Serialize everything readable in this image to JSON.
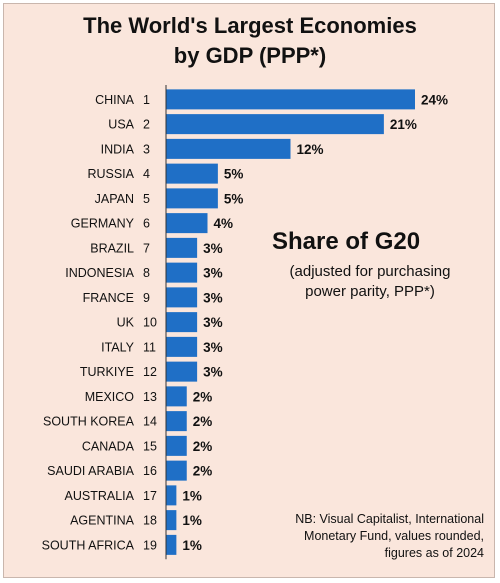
{
  "chart_data": {
    "type": "bar",
    "orientation": "horizontal",
    "title_line1": "The World's Largest Economies",
    "title_line2": "by GDP (PPP*)",
    "categories": [
      "CHINA",
      "USA",
      "INDIA",
      "RUSSIA",
      "JAPAN",
      "GERMANY",
      "BRAZIL",
      "INDONESIA",
      "FRANCE",
      "UK",
      "ITALY",
      "TURKIYE",
      "MEXICO",
      "SOUTH KOREA",
      "CANADA",
      "SAUDI ARABIA",
      "AUSTRALIA",
      "AGENTINA",
      "SOUTH AFRICA"
    ],
    "ranks": [
      "1",
      "2",
      "3",
      "4",
      "5",
      "6",
      "7",
      "8",
      "9",
      "10",
      "11",
      "12",
      "13",
      "14",
      "15",
      "16",
      "17",
      "18",
      "19"
    ],
    "values": [
      24,
      21,
      12,
      5,
      5,
      4,
      3,
      3,
      3,
      3,
      3,
      3,
      2,
      2,
      2,
      2,
      1,
      1,
      1
    ],
    "value_labels": [
      "24%",
      "21%",
      "12%",
      "5%",
      "5%",
      "4%",
      "3%",
      "3%",
      "3%",
      "3%",
      "3%",
      "3%",
      "2%",
      "2%",
      "2%",
      "2%",
      "1%",
      "1%",
      "1%"
    ],
    "xlim": [
      0,
      24
    ],
    "grid": false,
    "bar_color": "#1f6fc6"
  },
  "annotation": {
    "heading": "Share of G20",
    "sub_line1": "(adjusted for purchasing",
    "sub_line2": "power parity, PPP*)"
  },
  "note": {
    "line1": "NB: Visual Capitalist, International",
    "line2": "Monetary Fund, values rounded,",
    "line3": "figures as of 2024"
  },
  "colors": {
    "background": "#fae6dc",
    "bar": "#1f6fc6",
    "axis": "#333333"
  }
}
